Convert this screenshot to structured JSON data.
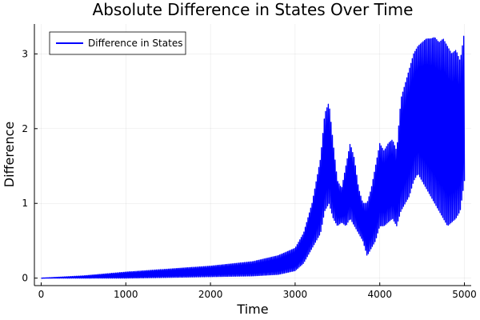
{
  "chart_data": {
    "type": "line",
    "title": "Absolute Difference in States Over Time",
    "xlabel": "Time",
    "ylabel": "Difference",
    "xlim": [
      -80,
      5080
    ],
    "ylim": [
      -0.1,
      3.4
    ],
    "xticks": [
      0,
      1000,
      2000,
      3000,
      4000,
      5000
    ],
    "yticks": [
      0,
      1,
      2,
      3
    ],
    "grid": true,
    "legend_position": "top-left",
    "series": [
      {
        "name": "Difference in States",
        "color": "#0000ff",
        "envelope": {
          "x": [
            0,
            500,
            1000,
            1500,
            2000,
            2500,
            2800,
            3000,
            3100,
            3200,
            3300,
            3350,
            3400,
            3450,
            3500,
            3550,
            3600,
            3650,
            3700,
            3750,
            3800,
            3850,
            3900,
            3950,
            4000,
            4050,
            4100,
            4150,
            4200,
            4250,
            4300,
            4350,
            4400,
            4450,
            4500,
            4550,
            4600,
            4650,
            4700,
            4750,
            4800,
            4850,
            4900,
            4950,
            5000
          ],
          "upper": [
            0.0,
            0.03,
            0.08,
            0.12,
            0.16,
            0.22,
            0.3,
            0.4,
            0.6,
            1.0,
            1.6,
            2.2,
            2.35,
            1.8,
            1.3,
            1.2,
            1.5,
            1.8,
            1.6,
            1.2,
            1.0,
            1.0,
            1.2,
            1.5,
            1.8,
            1.7,
            1.8,
            1.85,
            1.7,
            2.4,
            2.6,
            2.8,
            3.0,
            3.1,
            3.15,
            3.2,
            3.2,
            3.22,
            3.15,
            3.2,
            3.1,
            3.0,
            3.05,
            2.9,
            3.3
          ],
          "lower": [
            0.0,
            0.0,
            0.0,
            0.01,
            0.02,
            0.03,
            0.05,
            0.1,
            0.2,
            0.4,
            0.6,
            0.9,
            1.0,
            0.8,
            0.7,
            0.75,
            0.7,
            0.8,
            0.7,
            0.6,
            0.5,
            0.3,
            0.4,
            0.5,
            0.7,
            0.7,
            0.75,
            0.8,
            0.7,
            0.9,
            1.0,
            1.1,
            1.3,
            1.4,
            1.3,
            1.2,
            1.1,
            1.0,
            0.9,
            0.8,
            0.7,
            0.75,
            0.8,
            0.9,
            1.3
          ]
        }
      }
    ]
  }
}
